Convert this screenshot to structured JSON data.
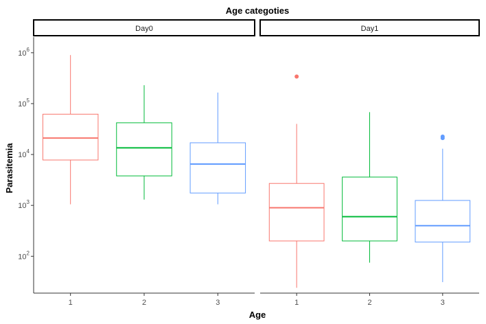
{
  "chart_data": {
    "type": "boxplot",
    "title": "Age categoties",
    "xlabel": "Age",
    "ylabel": "Parasitemia",
    "y_scale": "log10",
    "ylim": [
      12.6,
      1584893
    ],
    "y_ticks": [
      {
        "value": 100,
        "base": "10",
        "exp": "2"
      },
      {
        "value": 1000,
        "base": "10",
        "exp": "3"
      },
      {
        "value": 10000,
        "base": "10",
        "exp": "4"
      },
      {
        "value": 100000,
        "base": "10",
        "exp": "5"
      },
      {
        "value": 1000000,
        "base": "10",
        "exp": "6"
      }
    ],
    "categories": [
      "1",
      "2",
      "3"
    ],
    "colors": {
      "1": "#F8766D",
      "2": "#00BA38",
      "3": "#619CFF"
    },
    "grid": false,
    "legend": "none",
    "facets": [
      {
        "label": "Day0",
        "boxes": [
          {
            "category": "1",
            "min": 1050,
            "q1": 7800,
            "median": 21000,
            "q3": 62000,
            "max": 900000,
            "outliers": []
          },
          {
            "category": "2",
            "min": 1300,
            "q1": 3800,
            "median": 13500,
            "q3": 42000,
            "max": 230000,
            "outliers": []
          },
          {
            "category": "3",
            "min": 1050,
            "q1": 1750,
            "median": 6500,
            "q3": 17000,
            "max": 165000,
            "outliers": []
          }
        ]
      },
      {
        "label": "Day1",
        "boxes": [
          {
            "category": "1",
            "min": 24,
            "q1": 200,
            "median": 900,
            "q3": 2700,
            "max": 40000,
            "outliers": [
              340000
            ]
          },
          {
            "category": "2",
            "min": 75,
            "q1": 200,
            "median": 600,
            "q3": 3600,
            "max": 68000,
            "outliers": []
          },
          {
            "category": "3",
            "min": 31,
            "q1": 190,
            "median": 400,
            "q3": 1250,
            "max": 13000,
            "outliers": [
              21000,
              22500
            ]
          }
        ]
      }
    ]
  }
}
